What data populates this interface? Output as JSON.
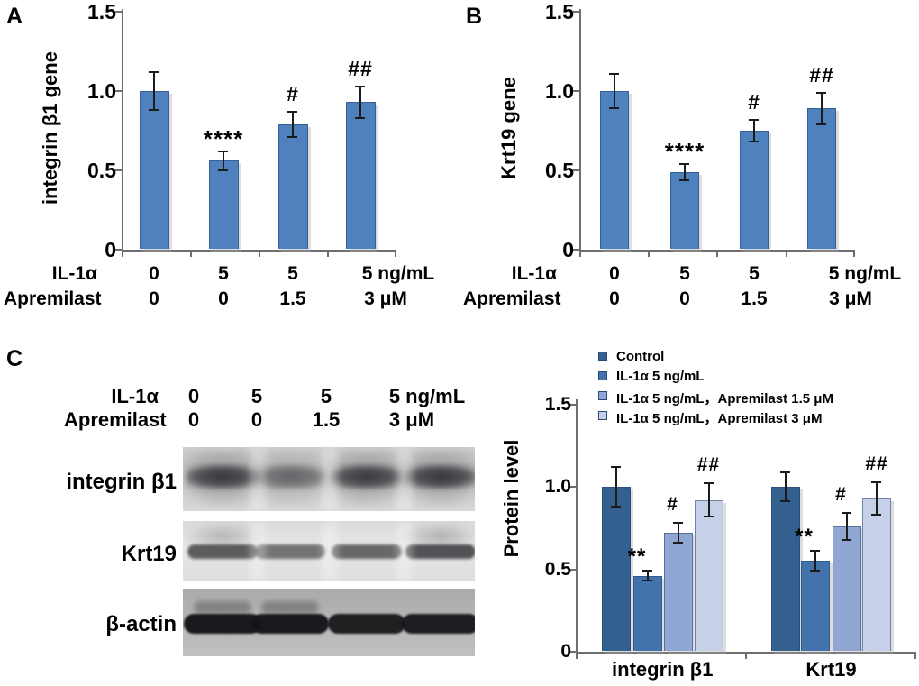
{
  "figure": {
    "panels": {
      "a": {
        "letter": "A"
      },
      "b": {
        "letter": "B"
      },
      "c": {
        "letter": "C"
      }
    }
  },
  "chart_data": [
    {
      "type": "bar",
      "panel": "A",
      "title": "",
      "xlabel": "",
      "ylabel": "integrin β1 gene",
      "ylim": [
        0,
        1.5
      ],
      "ytick_values": [
        0,
        0.5,
        1.0,
        1.5
      ],
      "ytick_labels": [
        "0",
        "0.5",
        "1.0",
        "1.5"
      ],
      "grid": false,
      "bar_color": "#4E81BD",
      "condition_rows": [
        {
          "label": "IL-1α",
          "values": [
            "0",
            "5",
            "5",
            "5 ng/mL"
          ]
        },
        {
          "label": "Apremilast",
          "values": [
            "0",
            "0",
            "1.5",
            "3 μM"
          ]
        }
      ],
      "values": [
        1.0,
        0.56,
        0.79,
        0.93
      ],
      "errors": [
        0.12,
        0.06,
        0.08,
        0.1
      ],
      "annotations": [
        "",
        "****",
        "#",
        "##"
      ]
    },
    {
      "type": "bar",
      "panel": "B",
      "title": "",
      "xlabel": "",
      "ylabel": "Krt19 gene",
      "ylim": [
        0,
        1.5
      ],
      "ytick_values": [
        0,
        0.5,
        1.0,
        1.5
      ],
      "ytick_labels": [
        "0",
        "0.5",
        "1.0",
        "1.5"
      ],
      "grid": false,
      "bar_color": "#4E81BD",
      "condition_rows": [
        {
          "label": "IL-1α",
          "values": [
            "0",
            "5",
            "5",
            "5 ng/mL"
          ]
        },
        {
          "label": "Apremilast",
          "values": [
            "0",
            "0",
            "1.5",
            "3 μM"
          ]
        }
      ],
      "values": [
        1.0,
        0.49,
        0.75,
        0.89
      ],
      "errors": [
        0.11,
        0.05,
        0.07,
        0.1
      ],
      "annotations": [
        "",
        "****",
        "#",
        "##"
      ]
    },
    {
      "type": "bar",
      "panel": "C",
      "grouped": true,
      "title": "",
      "xlabel": "",
      "ylabel": "Protein level",
      "ylim": [
        0,
        1.5
      ],
      "ytick_values": [
        0,
        0.5,
        1.0,
        1.5
      ],
      "ytick_labels": [
        "0",
        "0.5",
        "1.0",
        "1.5"
      ],
      "grid": false,
      "legend_position": "top",
      "categories": [
        "integrin β1",
        "Krt19"
      ],
      "series": [
        {
          "name": "Control",
          "color": "#33608F",
          "values": [
            1.0,
            1.0
          ],
          "errors": [
            0.12,
            0.09
          ]
        },
        {
          "name": "IL-1α  5 ng/mL",
          "color": "#4273AC",
          "values": [
            0.46,
            0.55
          ],
          "errors": [
            0.03,
            0.06
          ]
        },
        {
          "name": "IL-1α  5 ng/mL，Apremilast 1.5 μM",
          "color": "#8FA7D2",
          "values": [
            0.72,
            0.76
          ],
          "errors": [
            0.06,
            0.08
          ]
        },
        {
          "name": "IL-1α  5 ng/mL，Apremilast 3 μM",
          "color": "#C6D0E8",
          "values": [
            0.92,
            0.93
          ],
          "errors": [
            0.1,
            0.1
          ]
        }
      ],
      "annotations": [
        [
          "",
          "**",
          "#",
          "##"
        ],
        [
          "",
          "**",
          "#",
          "##"
        ]
      ]
    }
  ],
  "western_blot": {
    "panel": "C",
    "condition_rows": [
      {
        "label": "IL-1α",
        "values": [
          "0",
          "5",
          "5",
          "5 ng/mL"
        ]
      },
      {
        "label": "Apremilast",
        "values": [
          "0",
          "0",
          "1.5",
          "3 μM"
        ]
      }
    ],
    "rows": [
      {
        "label": "integrin β1",
        "band_intensities": [
          0.8,
          0.5,
          0.78,
          0.8
        ]
      },
      {
        "label": "Krt19",
        "band_intensities": [
          0.82,
          0.68,
          0.75,
          0.88
        ]
      },
      {
        "label": "β-actin",
        "band_intensities": [
          0.96,
          0.96,
          0.93,
          0.94
        ]
      }
    ]
  }
}
